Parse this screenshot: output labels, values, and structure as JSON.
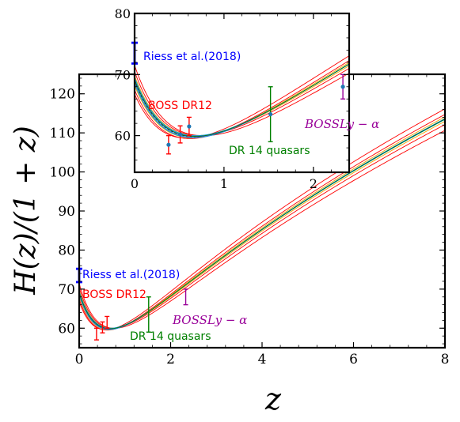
{
  "chart_data": [
    {
      "id": "main",
      "type": "line",
      "xlabel": "z",
      "ylabel": "H(z)/(1 + z)",
      "xlim": [
        0,
        8
      ],
      "ylim": [
        55,
        125
      ],
      "xticks": [
        0,
        2,
        4,
        6,
        8
      ],
      "yticks": [
        60,
        70,
        80,
        90,
        100,
        110,
        120
      ],
      "annotations": [
        {
          "text": "Riess et al.(2018)",
          "color": "#0000ff"
        },
        {
          "text": "BOSS DR12",
          "color": "#ff0000"
        },
        {
          "text": "DR 14 quasars",
          "color": "#008000"
        },
        {
          "text": "BOSSLy − α",
          "color": "#990099"
        }
      ]
    },
    {
      "id": "inset",
      "type": "line",
      "xlim": [
        0,
        2.4
      ],
      "ylim": [
        54,
        80
      ],
      "xticks": [
        0,
        1,
        2
      ],
      "yticks": [
        60,
        70,
        80
      ],
      "annotations": [
        {
          "text": "Riess et al.(2018)",
          "color": "#0000ff"
        },
        {
          "text": "BOSS DR12",
          "color": "#ff0000"
        },
        {
          "text": "DR 14 quasars",
          "color": "#008000"
        },
        {
          "text": "BOSSLy − α",
          "color": "#990099"
        }
      ]
    }
  ],
  "measurements": [
    {
      "label": "Riess et al.(2018)",
      "z": 0.0,
      "y": 73.5,
      "err": 1.7,
      "color": "#0000ff"
    },
    {
      "label": "BOSS DR12",
      "z": 0.38,
      "y": 58.5,
      "err": 1.5,
      "color": "#ff0000"
    },
    {
      "label": "BOSS DR12",
      "z": 0.51,
      "y": 60.2,
      "err": 1.4,
      "color": "#ff0000"
    },
    {
      "label": "BOSS DR12",
      "z": 0.61,
      "y": 61.5,
      "err": 1.5,
      "color": "#ff0000"
    },
    {
      "label": "DR 14 quasars",
      "z": 1.52,
      "y": 63.5,
      "err": 4.5,
      "color": "#008000"
    },
    {
      "label": "BOSSLy − α",
      "z": 2.33,
      "y": 68.0,
      "err": 2.0,
      "color": "#990099"
    }
  ],
  "model_curves": [
    {
      "H0": 69.0,
      "Om": 0.3,
      "color": "#000000",
      "dashed": true
    },
    {
      "H0": 70.5,
      "Om": 0.28,
      "color": "#ff0000"
    },
    {
      "H0": 67.5,
      "Om": 0.32,
      "color": "#ff0000"
    },
    {
      "H0": 71.5,
      "Om": 0.265,
      "color": "#ff0000"
    },
    {
      "H0": 66.8,
      "Om": 0.335,
      "color": "#ff0000"
    },
    {
      "H0": 69.8,
      "Om": 0.29,
      "color": "#ffa500"
    },
    {
      "H0": 68.2,
      "Om": 0.31,
      "color": "#ffa500"
    },
    {
      "H0": 69.5,
      "Om": 0.295,
      "color": "#00bfbf"
    },
    {
      "H0": 68.5,
      "Om": 0.305,
      "color": "#00bfbf"
    },
    {
      "H0": 69.3,
      "Om": 0.297,
      "color": "#3366ff"
    },
    {
      "H0": 68.7,
      "Om": 0.303,
      "color": "#3366ff"
    },
    {
      "H0": 69.1,
      "Om": 0.299,
      "color": "#008000"
    }
  ]
}
